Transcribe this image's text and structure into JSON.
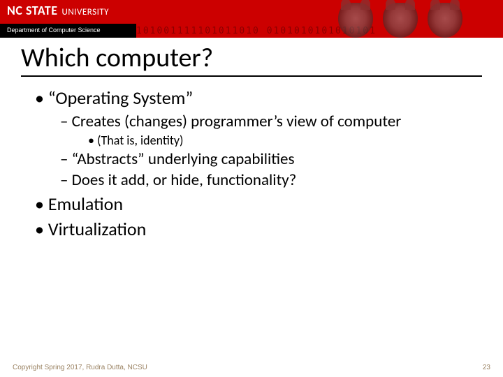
{
  "header": {
    "logo_bold": "NC STATE",
    "logo_light": "UNIVERSITY",
    "department": "Department of Computer Science",
    "binary": "101001111101011010 0101010101010101",
    "band_color": "#cc0000",
    "dept_bg": "#000000"
  },
  "title": "Which computer?",
  "title_rule_color": "#000000",
  "bullets": {
    "b1": "“Operating System”",
    "b1_1": "Creates (changes) programmer’s view of computer",
    "b1_1_1": "(That is, identity)",
    "b1_2": "“Abstracts” underlying capabilities",
    "b1_3": "Does it add, or hide, functionality?",
    "b2": "Emulation",
    "b3": "Virtualization"
  },
  "footer": {
    "copyright": "Copyright Spring 2017, Rudra Dutta, NCSU",
    "page": "23",
    "color": "#9a8262"
  },
  "typography": {
    "title_fontsize": 38,
    "lvl1_fontsize": 26,
    "lvl2_fontsize": 23,
    "lvl3_fontsize": 18,
    "footer_fontsize": 10
  }
}
